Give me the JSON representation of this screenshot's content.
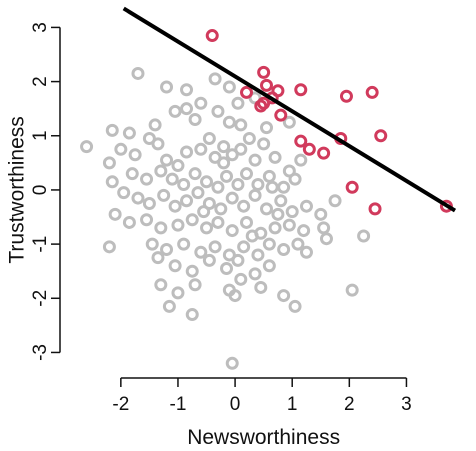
{
  "chart_data": {
    "type": "scatter",
    "title": "",
    "xlabel": "Newsworthiness",
    "ylabel": "Trustworthiness",
    "xlim": [
      -2.75,
      3.85
    ],
    "ylim": [
      -3.25,
      3.1
    ],
    "xticks": [
      -2,
      -1,
      0,
      1,
      2,
      3
    ],
    "yticks": [
      -3,
      -2,
      -1,
      0,
      1,
      2,
      3
    ],
    "grid": false,
    "legend": "none",
    "colors": {
      "selected": "#d13a5c",
      "not_selected": "#bdbdbd",
      "line": "#000000",
      "axis": "#111111"
    },
    "line": {
      "x": [
        -1.95,
        3.85
      ],
      "y": [
        3.35,
        -0.38
      ]
    },
    "series": [
      {
        "values": [
          [
            -0.4,
            2.85
          ],
          [
            0.5,
            2.17
          ],
          [
            0.2,
            1.8
          ],
          [
            0.55,
            1.93
          ],
          [
            0.75,
            1.83
          ],
          [
            1.15,
            1.85
          ],
          [
            1.95,
            1.73
          ],
          [
            2.4,
            1.8
          ],
          [
            0.5,
            1.6
          ],
          [
            0.45,
            1.55
          ],
          [
            0.65,
            1.7
          ],
          [
            0.8,
            1.38
          ],
          [
            1.15,
            0.9
          ],
          [
            1.3,
            0.75
          ],
          [
            1.55,
            0.68
          ],
          [
            1.85,
            0.95
          ],
          [
            2.55,
            1.0
          ],
          [
            2.05,
            0.05
          ],
          [
            2.45,
            -0.35
          ],
          [
            3.7,
            -0.3
          ]
        ]
      },
      {
        "values": [
          [
            -2.6,
            0.8
          ],
          [
            -1.7,
            2.15
          ],
          [
            -1.2,
            1.9
          ],
          [
            -0.85,
            1.85
          ],
          [
            -0.35,
            2.05
          ],
          [
            -0.1,
            1.9
          ],
          [
            0.05,
            1.6
          ],
          [
            0.35,
            1.7
          ],
          [
            -2.15,
            1.1
          ],
          [
            -1.85,
            1.05
          ],
          [
            -1.5,
            0.95
          ],
          [
            -1.4,
            1.2
          ],
          [
            -1.05,
            1.45
          ],
          [
            -0.85,
            1.5
          ],
          [
            -0.7,
            1.3
          ],
          [
            -0.6,
            1.6
          ],
          [
            -0.3,
            1.45
          ],
          [
            -0.1,
            1.25
          ],
          [
            0.1,
            1.2
          ],
          [
            0.25,
            0.95
          ],
          [
            0.55,
            1.15
          ],
          [
            0.95,
            1.25
          ],
          [
            -2.0,
            0.75
          ],
          [
            -1.75,
            0.65
          ],
          [
            -1.35,
            0.85
          ],
          [
            -1.2,
            0.55
          ],
          [
            -1.0,
            0.45
          ],
          [
            -0.85,
            0.7
          ],
          [
            -0.6,
            0.75
          ],
          [
            -0.45,
            0.95
          ],
          [
            -0.35,
            0.6
          ],
          [
            -0.2,
            0.5
          ],
          [
            -0.05,
            0.65
          ],
          [
            0.1,
            0.75
          ],
          [
            0.35,
            0.55
          ],
          [
            0.5,
            0.85
          ],
          [
            0.7,
            0.6
          ],
          [
            0.95,
            0.35
          ],
          [
            1.15,
            0.55
          ],
          [
            -2.2,
            0.5
          ],
          [
            -1.8,
            0.3
          ],
          [
            -1.55,
            0.2
          ],
          [
            -1.3,
            0.35
          ],
          [
            -1.1,
            0.2
          ],
          [
            -0.9,
            0.1
          ],
          [
            -0.7,
            0.3
          ],
          [
            -0.5,
            0.15
          ],
          [
            -0.3,
            0.05
          ],
          [
            -0.15,
            0.25
          ],
          [
            0.05,
            0.1
          ],
          [
            0.2,
            0.3
          ],
          [
            0.4,
            0.1
          ],
          [
            0.6,
            0.25
          ],
          [
            0.85,
            0.05
          ],
          [
            1.05,
            0.2
          ],
          [
            -2.15,
            0.15
          ],
          [
            -1.95,
            -0.05
          ],
          [
            -1.7,
            -0.15
          ],
          [
            -1.5,
            -0.25
          ],
          [
            -1.25,
            -0.1
          ],
          [
            -1.05,
            -0.3
          ],
          [
            -0.85,
            -0.2
          ],
          [
            -0.65,
            -0.05
          ],
          [
            -0.45,
            -0.25
          ],
          [
            -0.25,
            -0.35
          ],
          [
            -0.05,
            -0.15
          ],
          [
            0.15,
            -0.3
          ],
          [
            0.35,
            -0.1
          ],
          [
            0.55,
            -0.35
          ],
          [
            0.8,
            -0.2
          ],
          [
            1.0,
            -0.4
          ],
          [
            1.25,
            -0.3
          ],
          [
            1.5,
            -0.45
          ],
          [
            1.75,
            -0.2
          ],
          [
            -2.1,
            -0.45
          ],
          [
            -1.85,
            -0.6
          ],
          [
            -1.55,
            -0.55
          ],
          [
            -1.3,
            -0.7
          ],
          [
            -1.0,
            -0.65
          ],
          [
            -0.75,
            -0.55
          ],
          [
            -0.5,
            -0.7
          ],
          [
            -0.3,
            -0.6
          ],
          [
            -0.05,
            -0.75
          ],
          [
            0.2,
            -0.6
          ],
          [
            0.45,
            -0.8
          ],
          [
            0.7,
            -0.7
          ],
          [
            0.95,
            -0.65
          ],
          [
            1.2,
            -0.75
          ],
          [
            1.55,
            -0.7
          ],
          [
            1.6,
            -0.9
          ],
          [
            2.25,
            -0.85
          ],
          [
            -2.2,
            -1.05
          ],
          [
            -1.45,
            -1.0
          ],
          [
            -1.2,
            -1.1
          ],
          [
            -0.9,
            -1.0
          ],
          [
            -0.6,
            -1.15
          ],
          [
            -0.35,
            -1.05
          ],
          [
            -0.1,
            -1.2
          ],
          [
            0.15,
            -1.05
          ],
          [
            0.4,
            -1.2
          ],
          [
            0.6,
            -1.0
          ],
          [
            0.85,
            -1.1
          ],
          [
            1.1,
            -1.0
          ],
          [
            1.25,
            -1.15
          ],
          [
            -1.35,
            -1.25
          ],
          [
            -1.05,
            -1.4
          ],
          [
            -0.75,
            -1.5
          ],
          [
            -0.45,
            -1.3
          ],
          [
            -0.15,
            -1.45
          ],
          [
            0.05,
            -1.3
          ],
          [
            0.35,
            -1.55
          ],
          [
            0.6,
            -1.4
          ],
          [
            -1.3,
            -1.75
          ],
          [
            -1.0,
            -1.9
          ],
          [
            -0.7,
            -1.75
          ],
          [
            -0.1,
            -1.85
          ],
          [
            0.1,
            -1.65
          ],
          [
            0.45,
            -1.8
          ],
          [
            -0.75,
            -2.3
          ],
          [
            0.0,
            -1.95
          ],
          [
            1.05,
            -2.15
          ],
          [
            2.05,
            -1.85
          ],
          [
            -1.15,
            -2.15
          ],
          [
            0.85,
            -1.95
          ],
          [
            -0.05,
            -3.2
          ],
          [
            0.65,
            0.05
          ],
          [
            -0.2,
            0.8
          ],
          [
            0.3,
            -0.85
          ],
          [
            0.75,
            -0.45
          ],
          [
            -0.55,
            -0.4
          ]
        ]
      }
    ]
  }
}
